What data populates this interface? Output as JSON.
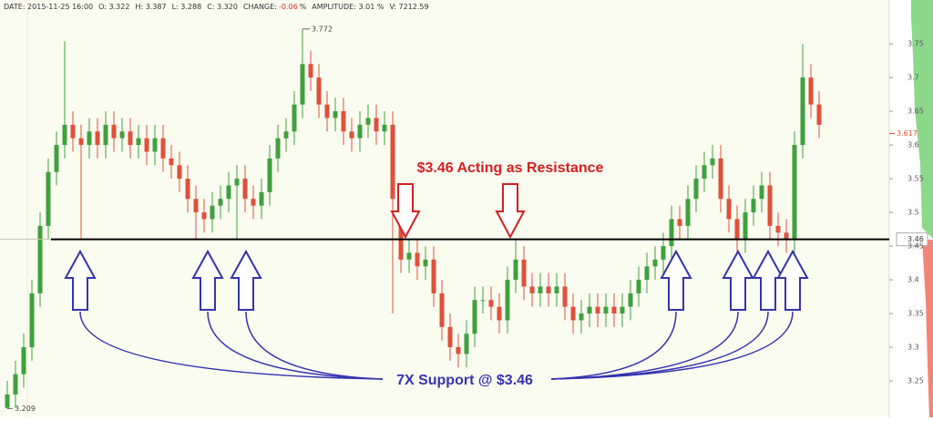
{
  "chart_data": {
    "type": "candlestick",
    "header": [
      "DATE: 2015-11-25  16:00",
      "O: 3.322",
      "H: 3.387",
      "L: 3.288",
      "C: 3.320",
      "CHANGE:",
      "-0.06",
      "%",
      "AMPLITUDE: 3.01 %",
      "V: 7212.59"
    ],
    "annotations": {
      "resistance": "$3.46 Acting as Resistance",
      "support": "7X Support @ $3.46"
    },
    "level": 3.46,
    "last_price": 3.617,
    "up_color": "#3fa03f",
    "down_color": "#e0503a",
    "ylim": [
      3.196,
      3.815
    ],
    "yticks": [
      3.25,
      3.3,
      3.35,
      3.4,
      3.45,
      3.5,
      3.55,
      3.6,
      3.65,
      3.7,
      3.75
    ],
    "grid": false,
    "open": [
      3.21,
      3.23,
      3.26,
      3.3,
      3.38,
      3.48,
      3.56,
      3.6,
      3.63,
      3.61,
      3.6,
      3.62,
      3.6,
      3.63,
      3.61,
      3.62,
      3.6,
      3.61,
      3.59,
      3.61,
      3.58,
      3.57,
      3.55,
      3.52,
      3.5,
      3.49,
      3.51,
      3.52,
      3.54,
      3.55,
      3.52,
      3.51,
      3.53,
      3.58,
      3.61,
      3.62,
      3.66,
      3.72,
      3.7,
      3.66,
      3.64,
      3.65,
      3.62,
      3.61,
      3.63,
      3.64,
      3.62,
      3.63,
      3.52,
      3.43,
      3.44,
      3.42,
      3.43,
      3.38,
      3.33,
      3.3,
      3.29,
      3.32,
      3.37,
      3.37,
      3.36,
      3.34,
      3.4,
      3.43,
      3.39,
      3.38,
      3.39,
      3.38,
      3.39,
      3.36,
      3.34,
      3.35,
      3.36,
      3.35,
      3.36,
      3.35,
      3.36,
      3.38,
      3.4,
      3.42,
      3.43,
      3.45,
      3.49,
      3.48,
      3.52,
      3.55,
      3.57,
      3.58,
      3.52,
      3.49,
      3.46,
      3.5,
      3.52,
      3.54,
      3.48,
      3.47,
      3.46,
      3.6,
      3.7,
      3.66
    ],
    "high": [
      3.25,
      3.28,
      3.32,
      3.4,
      3.5,
      3.58,
      3.62,
      3.754,
      3.65,
      3.63,
      3.64,
      3.64,
      3.65,
      3.65,
      3.64,
      3.64,
      3.63,
      3.63,
      3.63,
      3.63,
      3.6,
      3.59,
      3.57,
      3.54,
      3.52,
      3.53,
      3.54,
      3.56,
      3.57,
      3.57,
      3.54,
      3.55,
      3.6,
      3.63,
      3.64,
      3.68,
      3.772,
      3.74,
      3.72,
      3.68,
      3.67,
      3.67,
      3.64,
      3.65,
      3.66,
      3.66,
      3.65,
      3.65,
      3.54,
      3.46,
      3.46,
      3.45,
      3.45,
      3.4,
      3.35,
      3.32,
      3.34,
      3.39,
      3.39,
      3.39,
      3.38,
      3.42,
      3.46,
      3.45,
      3.41,
      3.41,
      3.41,
      3.41,
      3.41,
      3.38,
      3.37,
      3.38,
      3.38,
      3.38,
      3.38,
      3.38,
      3.4,
      3.42,
      3.44,
      3.45,
      3.47,
      3.51,
      3.51,
      3.54,
      3.57,
      3.59,
      3.6,
      3.6,
      3.54,
      3.51,
      3.52,
      3.54,
      3.56,
      3.56,
      3.5,
      3.49,
      3.62,
      3.75,
      3.72,
      3.68
    ],
    "low": [
      3.209,
      3.21,
      3.24,
      3.28,
      3.36,
      3.46,
      3.54,
      3.58,
      3.59,
      3.46,
      3.58,
      3.58,
      3.58,
      3.59,
      3.59,
      3.58,
      3.58,
      3.57,
      3.57,
      3.56,
      3.55,
      3.53,
      3.5,
      3.46,
      3.47,
      3.47,
      3.49,
      3.5,
      3.46,
      3.5,
      3.49,
      3.49,
      3.51,
      3.56,
      3.59,
      3.6,
      3.64,
      3.68,
      3.64,
      3.62,
      3.62,
      3.6,
      3.59,
      3.59,
      3.61,
      3.6,
      3.6,
      3.35,
      3.41,
      3.41,
      3.4,
      3.4,
      3.36,
      3.31,
      3.28,
      3.27,
      3.27,
      3.3,
      3.35,
      3.34,
      3.32,
      3.32,
      3.38,
      3.37,
      3.36,
      3.36,
      3.36,
      3.36,
      3.34,
      3.32,
      3.32,
      3.33,
      3.33,
      3.33,
      3.33,
      3.33,
      3.34,
      3.36,
      3.38,
      3.4,
      3.41,
      3.43,
      3.46,
      3.46,
      3.5,
      3.53,
      3.55,
      3.5,
      3.47,
      3.44,
      3.44,
      3.48,
      3.5,
      3.46,
      3.45,
      3.44,
      3.44,
      3.58,
      3.64,
      3.61
    ],
    "close": [
      3.23,
      3.26,
      3.3,
      3.38,
      3.48,
      3.56,
      3.6,
      3.63,
      3.61,
      3.6,
      3.62,
      3.6,
      3.63,
      3.61,
      3.62,
      3.6,
      3.61,
      3.59,
      3.61,
      3.58,
      3.57,
      3.55,
      3.52,
      3.5,
      3.49,
      3.51,
      3.52,
      3.54,
      3.55,
      3.52,
      3.51,
      3.53,
      3.58,
      3.61,
      3.62,
      3.66,
      3.72,
      3.7,
      3.66,
      3.64,
      3.65,
      3.62,
      3.61,
      3.63,
      3.64,
      3.62,
      3.63,
      3.52,
      3.43,
      3.44,
      3.42,
      3.43,
      3.38,
      3.33,
      3.3,
      3.29,
      3.32,
      3.37,
      3.37,
      3.36,
      3.34,
      3.4,
      3.43,
      3.39,
      3.38,
      3.39,
      3.38,
      3.39,
      3.36,
      3.34,
      3.35,
      3.36,
      3.35,
      3.36,
      3.35,
      3.36,
      3.38,
      3.4,
      3.42,
      3.43,
      3.45,
      3.49,
      3.48,
      3.52,
      3.55,
      3.57,
      3.58,
      3.52,
      3.49,
      3.46,
      3.5,
      3.52,
      3.54,
      3.48,
      3.47,
      3.46,
      3.6,
      3.7,
      3.66,
      3.63
    ]
  }
}
